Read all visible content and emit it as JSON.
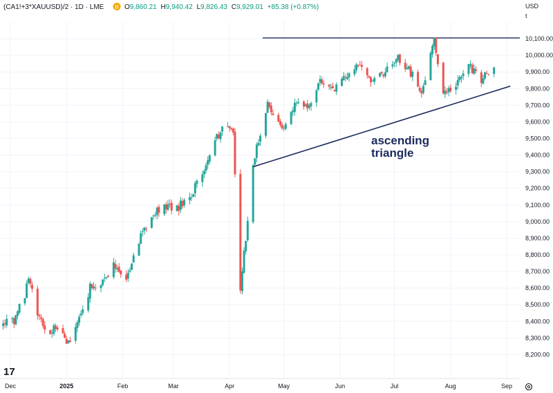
{
  "header": {
    "symbol": "(CA1!+3*XAUUSD)/2 · 1D · LME",
    "badge": "D",
    "o_label": "O",
    "o_val": "9,860.21",
    "h_label": "H",
    "h_val": "9,940.42",
    "l_label": "L",
    "l_val": "9,826.43",
    "c_label": "C",
    "c_val": "9,929.01",
    "change": "+85.38 (+0.87%)"
  },
  "currency": "USD",
  "currency_sub": "t",
  "logo_text": "17",
  "settings_icon": "gear-icon",
  "colors": {
    "up": "#26a69a",
    "down": "#ef5350",
    "annotation": "#1b2a5c",
    "header_badge": "#f7a600"
  },
  "chart_data": {
    "type": "candlestick",
    "x_tick_labels": [
      "Dec",
      "2025",
      "Feb",
      "Mar",
      "Apr",
      "May",
      "Jun",
      "Jul",
      "Aug",
      "Sep"
    ],
    "y_tick_labels": [
      "8,200.00",
      "8,300.00",
      "8,400.00",
      "8,500.00",
      "8,600.00",
      "8,700.00",
      "8,800.00",
      "8,900.00",
      "9,000.00",
      "9,100.00",
      "9,200.00",
      "9,300.00",
      "9,400.00",
      "9,500.00",
      "9,600.00",
      "9,700.00",
      "9,800.00",
      "9,900.00",
      "10,000.00",
      "10,100.00"
    ],
    "ylim": [
      8100,
      10290
    ],
    "annotation_lines": [
      "ascending",
      "triangle"
    ],
    "resistance_level": 10105,
    "support_line": {
      "from": [
        "2025-04-14",
        9330
      ],
      "to": [
        "2025-09-03",
        9815
      ]
    },
    "closes": [
      [
        "2024-11-27",
        8380
      ],
      [
        "2024-12-03",
        8410
      ],
      [
        "2024-12-09",
        8560
      ],
      [
        "2024-12-11",
        8660
      ],
      [
        "2024-12-16",
        8450
      ],
      [
        "2024-12-20",
        8330
      ],
      [
        "2024-12-27",
        8370
      ],
      [
        "2025-01-02",
        8270
      ],
      [
        "2025-01-08",
        8420
      ],
      [
        "2025-01-14",
        8600
      ],
      [
        "2025-01-21",
        8640
      ],
      [
        "2025-01-27",
        8730
      ],
      [
        "2025-02-03",
        8640
      ],
      [
        "2025-02-10",
        8880
      ],
      [
        "2025-02-17",
        9050
      ],
      [
        "2025-02-24",
        9100
      ],
      [
        "2025-03-03",
        9080
      ],
      [
        "2025-03-10",
        9150
      ],
      [
        "2025-03-17",
        9280
      ],
      [
        "2025-03-24",
        9500
      ],
      [
        "2025-03-31",
        9590
      ],
      [
        "2025-04-03",
        9520
      ],
      [
        "2025-04-07",
        8600
      ],
      [
        "2025-04-10",
        8900
      ],
      [
        "2025-04-14",
        9350
      ],
      [
        "2025-04-22",
        9720
      ],
      [
        "2025-04-30",
        9540
      ],
      [
        "2025-05-07",
        9700
      ],
      [
        "2025-05-14",
        9680
      ],
      [
        "2025-05-21",
        9850
      ],
      [
        "2025-05-28",
        9800
      ],
      [
        "2025-06-04",
        9880
      ],
      [
        "2025-06-11",
        9950
      ],
      [
        "2025-06-18",
        9860
      ],
      [
        "2025-06-25",
        9890
      ],
      [
        "2025-07-02",
        9990
      ],
      [
        "2025-07-09",
        9920
      ],
      [
        "2025-07-16",
        9770
      ],
      [
        "2025-07-21",
        10000
      ],
      [
        "2025-07-23",
        10090
      ],
      [
        "2025-07-28",
        9790
      ],
      [
        "2025-08-04",
        9830
      ],
      [
        "2025-08-11",
        9940
      ],
      [
        "2025-08-18",
        9850
      ],
      [
        "2025-08-25",
        9930
      ]
    ]
  }
}
